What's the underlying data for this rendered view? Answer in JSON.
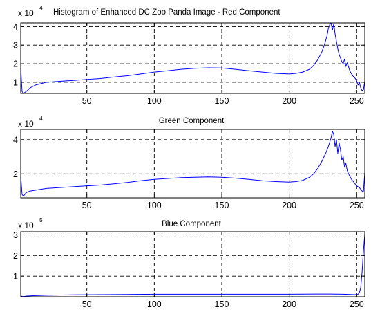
{
  "chart_data": [
    {
      "type": "line",
      "title": "Histogram of Enhanced DC Zoo Panda Image - Red Component",
      "exponent_label": {
        "base": "x 10",
        "power": "4"
      },
      "xlim": [
        1,
        256
      ],
      "ylim": [
        0.4,
        4.2
      ],
      "xticks": [
        50,
        100,
        150,
        200,
        250
      ],
      "xtick_labels": [
        "50",
        "100",
        "150",
        "200",
        "250"
      ],
      "yticks": [
        1,
        2,
        3,
        4
      ],
      "ytick_labels": [
        "1",
        "2",
        "3",
        "4"
      ],
      "grid": true,
      "color": "#0000ff",
      "series": [
        {
          "x": [
            1,
            2,
            3,
            5,
            8,
            12,
            20,
            30,
            40,
            50,
            60,
            70,
            80,
            90,
            100,
            110,
            120,
            130,
            140,
            150,
            160,
            170,
            180,
            190,
            200,
            205,
            210,
            215,
            218,
            221,
            224,
            226,
            228,
            229,
            230,
            231,
            232,
            233,
            234,
            235,
            236,
            237,
            238,
            239,
            240,
            241,
            242,
            243,
            245,
            247,
            249,
            250,
            251,
            252,
            253,
            254,
            255,
            256
          ],
          "y": [
            1.8,
            0.5,
            0.4,
            0.5,
            0.7,
            0.85,
            1.0,
            1.05,
            1.1,
            1.15,
            1.2,
            1.28,
            1.35,
            1.45,
            1.55,
            1.62,
            1.7,
            1.75,
            1.78,
            1.77,
            1.7,
            1.62,
            1.55,
            1.48,
            1.45,
            1.48,
            1.55,
            1.7,
            1.9,
            2.2,
            2.6,
            3.0,
            3.5,
            3.9,
            4.1,
            4.2,
            3.8,
            4.15,
            3.6,
            3.2,
            2.8,
            2.5,
            2.3,
            2.1,
            2.0,
            2.25,
            1.85,
            2.05,
            1.6,
            1.35,
            1.2,
            1.05,
            0.85,
            1.0,
            0.7,
            0.55,
            0.6,
            1.05
          ]
        }
      ]
    },
    {
      "type": "line",
      "title": "Green Component",
      "exponent_label": {
        "base": "x 10",
        "power": "4"
      },
      "xlim": [
        1,
        256
      ],
      "ylim": [
        0.6,
        4.6
      ],
      "xticks": [
        50,
        100,
        150,
        200,
        250
      ],
      "xtick_labels": [
        "50",
        "100",
        "150",
        "200",
        "250"
      ],
      "yticks": [
        2,
        4
      ],
      "ytick_labels": [
        "2",
        "4"
      ],
      "grid": true,
      "color": "#0000ff",
      "series": [
        {
          "x": [
            1,
            2,
            3,
            5,
            8,
            12,
            20,
            30,
            40,
            50,
            60,
            70,
            80,
            90,
            100,
            110,
            120,
            130,
            140,
            150,
            160,
            170,
            180,
            190,
            200,
            205,
            210,
            215,
            218,
            221,
            224,
            227,
            229,
            231,
            232,
            233,
            234,
            235,
            236,
            237,
            238,
            239,
            240,
            241,
            242,
            243,
            244,
            246,
            248,
            250,
            252,
            254,
            255,
            256
          ],
          "y": [
            1.9,
            0.8,
            0.7,
            0.9,
            1.0,
            1.05,
            1.15,
            1.2,
            1.25,
            1.3,
            1.35,
            1.42,
            1.5,
            1.6,
            1.68,
            1.73,
            1.78,
            1.8,
            1.82,
            1.8,
            1.75,
            1.68,
            1.6,
            1.55,
            1.52,
            1.55,
            1.62,
            1.8,
            2.0,
            2.3,
            2.7,
            3.2,
            3.6,
            4.1,
            4.5,
            4.3,
            3.6,
            4.0,
            3.2,
            3.8,
            3.4,
            2.8,
            3.0,
            2.4,
            2.6,
            2.2,
            2.0,
            1.7,
            1.5,
            1.3,
            1.2,
            1.0,
            0.95,
            2.1
          ]
        }
      ]
    },
    {
      "type": "line",
      "title": "Blue Component",
      "exponent_label": {
        "base": "x 10",
        "power": "5"
      },
      "xlim": [
        1,
        256
      ],
      "ylim": [
        0,
        3.15
      ],
      "xticks": [
        50,
        100,
        150,
        200,
        250
      ],
      "xtick_labels": [
        "50",
        "100",
        "150",
        "200",
        "250"
      ],
      "yticks": [
        1,
        2,
        3
      ],
      "ytick_labels": [
        "1",
        "2",
        "3"
      ],
      "grid": true,
      "color": "#0000ff",
      "series": [
        {
          "x": [
            1,
            2,
            3,
            5,
            10,
            20,
            40,
            60,
            80,
            100,
            120,
            140,
            160,
            180,
            200,
            220,
            230,
            240,
            245,
            248,
            250,
            251,
            252,
            253,
            254,
            255,
            256
          ],
          "y": [
            0.04,
            0.02,
            0.01,
            0.03,
            0.05,
            0.07,
            0.09,
            0.1,
            0.11,
            0.12,
            0.12,
            0.12,
            0.12,
            0.12,
            0.12,
            0.13,
            0.13,
            0.12,
            0.11,
            0.1,
            0.1,
            0.12,
            0.2,
            0.45,
            1.2,
            2.2,
            3.05
          ]
        }
      ]
    }
  ]
}
